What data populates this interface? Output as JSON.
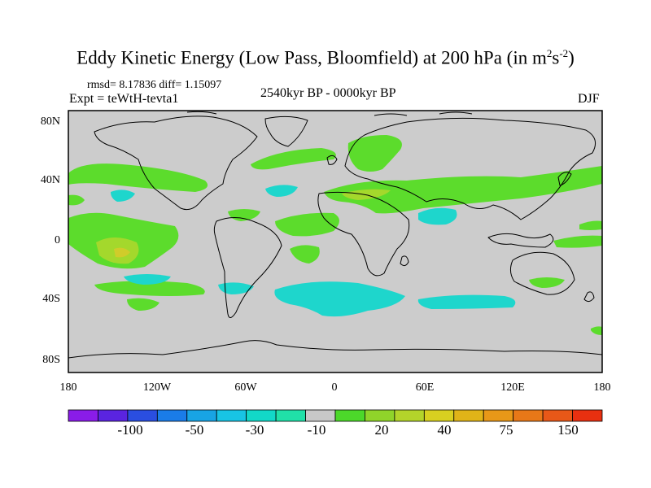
{
  "title": {
    "main": "Eddy Kinetic Energy (Low Pass, Bloomfield) at 200 hPa (in m",
    "sup1": "2",
    "mid": "s",
    "sup2": "-2",
    "close": ")"
  },
  "stats": "rmsd= 8.17836 diff= 1.15097",
  "experiment": "Expt = teWtH-tevta1",
  "period": "2540kyr BP - 0000kyr BP",
  "season": "DJF",
  "lat_labels": [
    "80N",
    "40N",
    "0",
    "40S",
    "80S"
  ],
  "lon_labels": [
    "180",
    "120W",
    "60W",
    "0",
    "60E",
    "120E",
    "180"
  ],
  "colorbar": {
    "labels": [
      "-100",
      "-50",
      "-30",
      "-10",
      "20",
      "40",
      "75",
      "150"
    ],
    "colors": [
      "#8a1ce8",
      "#5a24e0",
      "#2a4ee0",
      "#1a7ce8",
      "#18a4e4",
      "#18c4e4",
      "#12d8c8",
      "#20e0a8",
      "#c8c8c8",
      "#4cd82a",
      "#90d42a",
      "#b4d42a",
      "#d8d020",
      "#e0b418",
      "#e89818",
      "#e87818",
      "#e85818",
      "#e83010"
    ]
  },
  "colors": {
    "ocean_background": "#cccccc",
    "positive_fill": "#5cdc2c",
    "positive_high": "#a4d82c",
    "positive_peak": "#d0cc2a",
    "negative_fill": "#1ed6cc",
    "coastline": "#000000"
  }
}
